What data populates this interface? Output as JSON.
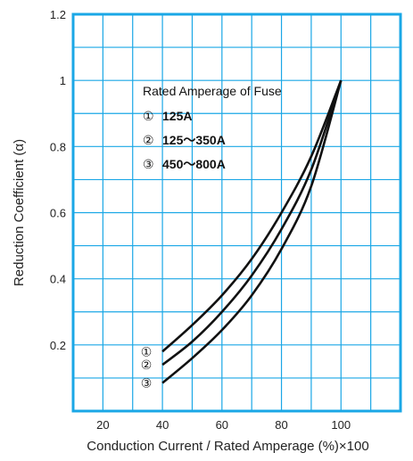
{
  "chart_data": {
    "type": "line",
    "title": "",
    "xlabel": "Conduction Current / Rated Amperage (%)×100",
    "ylabel": "Reduction Coefficient (α)",
    "xlim": [
      10,
      120
    ],
    "ylim": [
      0,
      1.2
    ],
    "x_ticks": [
      20,
      40,
      60,
      80,
      100
    ],
    "y_ticks": [
      0.2,
      0.4,
      0.6,
      0.8,
      1,
      1.2
    ],
    "x_tick_labels": [
      "20",
      "40",
      "60",
      "80",
      "100"
    ],
    "y_tick_labels": [
      "0.2",
      "0.4",
      "0.6",
      "0.8",
      "1",
      "1.2"
    ],
    "grid": true,
    "grid_minor": {
      "x_step": 10,
      "y_step": 0.1
    },
    "colors": {
      "grid": "#1aa7e6",
      "frame": "#1aa7e6",
      "line": "#111111"
    },
    "legend": {
      "title": "Rated Amperage of Fuse",
      "placement": "top-center",
      "entries": [
        {
          "marker": "①",
          "label": "125A"
        },
        {
          "marker": "②",
          "label": "125～350A"
        },
        {
          "marker": "③",
          "label": "450～800A"
        }
      ]
    },
    "series": [
      {
        "marker": "①",
        "x": [
          40,
          50,
          60,
          70,
          80,
          90,
          100
        ],
        "y": [
          0.18,
          0.26,
          0.35,
          0.46,
          0.6,
          0.77,
          1.0
        ]
      },
      {
        "marker": "②",
        "x": [
          40,
          50,
          60,
          70,
          80,
          90,
          100
        ],
        "y": [
          0.14,
          0.21,
          0.3,
          0.41,
          0.55,
          0.73,
          1.0
        ]
      },
      {
        "marker": "③",
        "x": [
          40,
          50,
          60,
          70,
          80,
          90,
          100
        ],
        "y": [
          0.085,
          0.16,
          0.245,
          0.35,
          0.49,
          0.68,
          1.0
        ]
      }
    ]
  }
}
